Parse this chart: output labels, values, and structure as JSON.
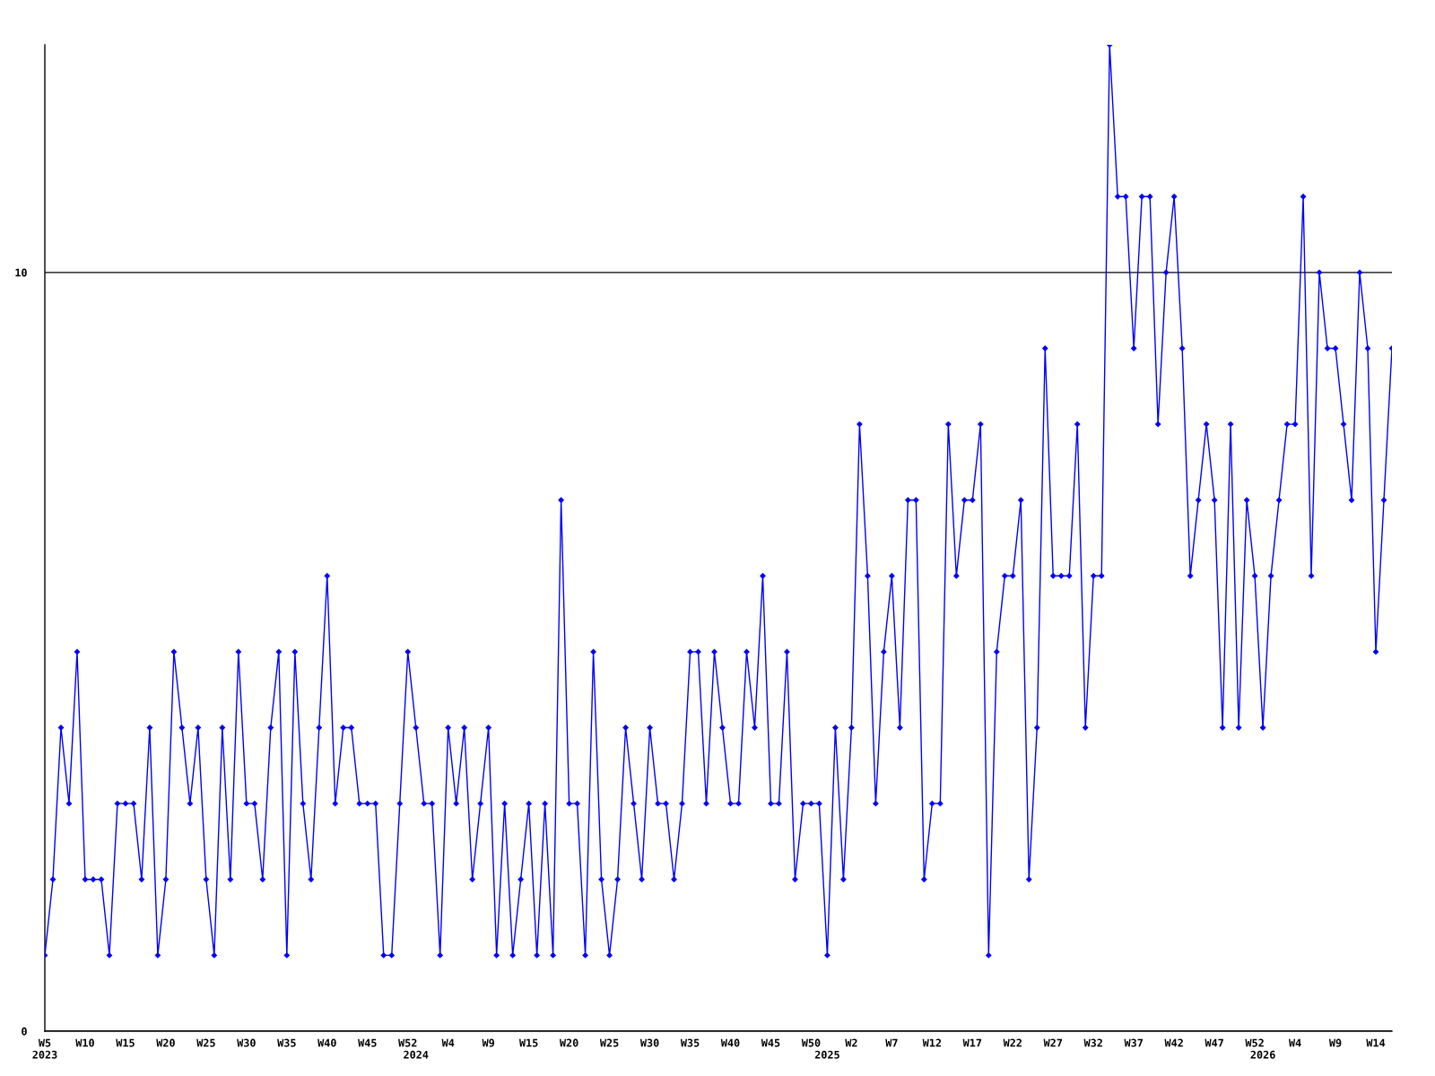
{
  "chart_data": {
    "type": "line",
    "categories": [
      "W5\n2023",
      null,
      null,
      null,
      null,
      "W10",
      null,
      null,
      null,
      null,
      "W15",
      null,
      null,
      null,
      null,
      "W20",
      null,
      null,
      null,
      null,
      "W25",
      null,
      null,
      null,
      null,
      "W30",
      null,
      null,
      null,
      null,
      "W35",
      null,
      null,
      null,
      null,
      "W40",
      null,
      null,
      null,
      null,
      "W45",
      null,
      null,
      null,
      null,
      "W52",
      "\n2024",
      null,
      null,
      null,
      "W4",
      null,
      null,
      null,
      null,
      "W9",
      null,
      null,
      null,
      null,
      "W15",
      null,
      null,
      null,
      null,
      "W20",
      null,
      null,
      null,
      null,
      "W25",
      null,
      null,
      null,
      null,
      "W30",
      null,
      null,
      null,
      null,
      "W35",
      null,
      null,
      null,
      null,
      "W40",
      null,
      null,
      null,
      null,
      "W45",
      null,
      null,
      null,
      null,
      "W50",
      null,
      "\n2025",
      null,
      null,
      "W2",
      null,
      null,
      null,
      null,
      "W7",
      null,
      null,
      null,
      null,
      "W12",
      null,
      null,
      null,
      null,
      "W17",
      null,
      null,
      null,
      null,
      "W22",
      null,
      null,
      null,
      null,
      "W27",
      null,
      null,
      null,
      null,
      "W32",
      null,
      null,
      null,
      null,
      "W37",
      null,
      null,
      null,
      null,
      "W42",
      null,
      null,
      null,
      null,
      "W47",
      null,
      null,
      null,
      null,
      "W52",
      "\n2026",
      null,
      null,
      null,
      "W4",
      null,
      null,
      null,
      null,
      "W9",
      null,
      null,
      null,
      null,
      "W14",
      null,
      null
    ],
    "series": [
      {
        "color": "#0000ff",
        "values": [
          1,
          2,
          4,
          3,
          5,
          2,
          2,
          2,
          1,
          3,
          3,
          3,
          2,
          4,
          1,
          2,
          5,
          4,
          3,
          4,
          2,
          1,
          4,
          2,
          5,
          3,
          3,
          2,
          4,
          5,
          1,
          5,
          3,
          2,
          4,
          6,
          3,
          4,
          4,
          3,
          3,
          3,
          1,
          1,
          3,
          5,
          4,
          3,
          3,
          1,
          4,
          3,
          4,
          2,
          3,
          4,
          1,
          3,
          1,
          2,
          3,
          1,
          3,
          1,
          7,
          3,
          3,
          1,
          5,
          2,
          1,
          2,
          4,
          3,
          2,
          4,
          3,
          3,
          2,
          3,
          5,
          5,
          3,
          5,
          4,
          3,
          3,
          5,
          4,
          6,
          3,
          3,
          5,
          2,
          3,
          3,
          3,
          1,
          4,
          2,
          4,
          8,
          6,
          3,
          5,
          6,
          4,
          7,
          7,
          2,
          3,
          3,
          8,
          6,
          7,
          7,
          8,
          1,
          5,
          6,
          6,
          7,
          2,
          4,
          9,
          6,
          6,
          6,
          8,
          4,
          6,
          6,
          13,
          11,
          11,
          9,
          11,
          11,
          8,
          10,
          11,
          9,
          6,
          7,
          8,
          7,
          4,
          8,
          4,
          7,
          6,
          4,
          6,
          7,
          8,
          8,
          11,
          6,
          10,
          9,
          9,
          8,
          7,
          10,
          9,
          5,
          7,
          9
        ]
      }
    ],
    "ylim": [
      0,
      13
    ],
    "yticks": [
      0,
      10
    ],
    "grid": "y",
    "marker": "diamond",
    "line_style": "solid"
  }
}
